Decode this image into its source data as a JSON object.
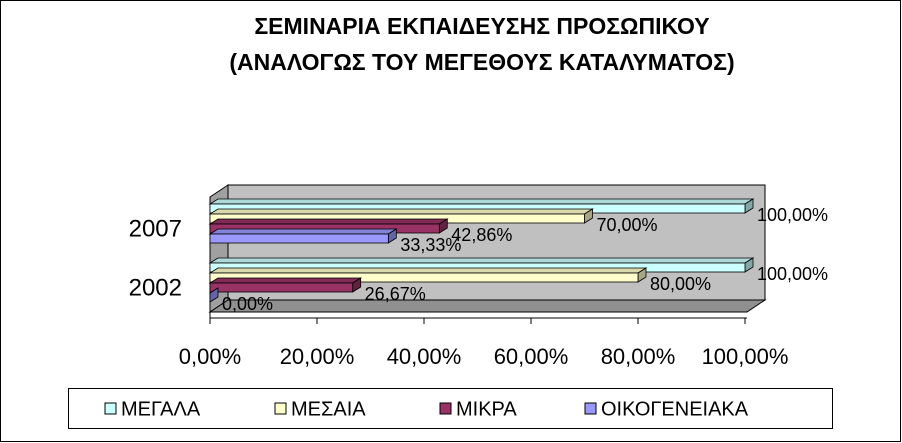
{
  "chart_data": {
    "type": "bar",
    "orientation": "horizontal",
    "three_d": true,
    "title": "ΣΕΜΙΝΑΡΙΑ ΕΚΠΑΙΔΕΥΣΗΣ ΠΡΟΣΩΠΙΚΟΥ",
    "subtitle": "(ΑΝΑΛΟΓΩΣ ΤΟΥ ΜΕΓΕΘΟΥΣ ΚΑΤΑΛΥΜΑΤΟΣ)",
    "categories": [
      "2002",
      "2007"
    ],
    "series": [
      {
        "name": "ΜΕΓΑΛΑ",
        "color": "#ccffff",
        "values": [
          100,
          100
        ],
        "value_labels": [
          "100,00%",
          "100,00%"
        ]
      },
      {
        "name": "ΜΕΣΑΙΑ",
        "color": "#ffffcc",
        "values": [
          80,
          70
        ],
        "value_labels": [
          "80,00%",
          "70,00%"
        ]
      },
      {
        "name": "ΜΙΚΡΑ",
        "color": "#993366",
        "values": [
          26.67,
          42.86
        ],
        "value_labels": [
          "26,67%",
          "42,86%"
        ]
      },
      {
        "name": "ΟΙΚΟΓΕΝΕΙΑΚΑ",
        "color": "#9999ff",
        "values": [
          0,
          33.33
        ],
        "value_labels": [
          "0,00%",
          "33,33%"
        ]
      }
    ],
    "xlim": [
      0,
      100
    ],
    "xticks": [
      {
        "value": 0,
        "label": "0,00%"
      },
      {
        "value": 20,
        "label": "20,00%"
      },
      {
        "value": 40,
        "label": "40,00%"
      },
      {
        "value": 60,
        "label": "60,00%"
      },
      {
        "value": 80,
        "label": "80,00%"
      },
      {
        "value": 100,
        "label": "100,00%"
      }
    ],
    "legend": "bottom"
  }
}
